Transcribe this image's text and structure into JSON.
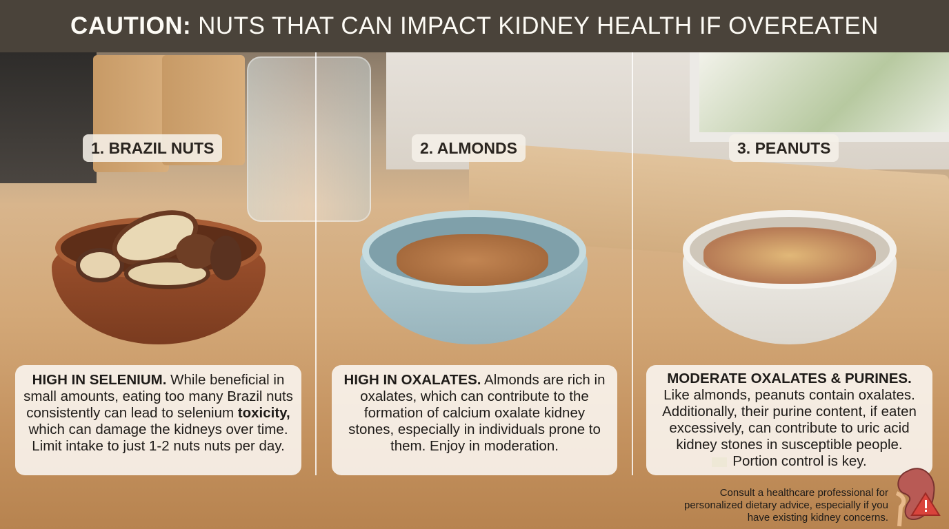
{
  "header": {
    "title_bold": "CAUTION:",
    "title_rest": "NUTS THAT CAN IMPACT KIDNEY HEALTH IF OVEREATEN"
  },
  "panels": [
    {
      "label": "1. BRAZIL NUTS",
      "heading": "HIGH IN SELENIUM.",
      "body_before": " While beneficial in small amounts, eating too many Brazil nuts consistently can lead to selenium ",
      "body_bold": "toxicity,",
      "body_after": " which can damage the kidneys over time. Limit intake to just 1-2 nuts nuts per day."
    },
    {
      "label": "2. ALMONDS",
      "heading": "HIGH IN OXALATES.",
      "body": " Almonds are rich in oxalates, which can contribute to the formation of calcium oxalate kidney stones, especially in individuals prone to them. Enjoy in moderation."
    },
    {
      "label": "3. PEANUTS",
      "heading": "MODERATE OXALATES & PURINES.",
      "body": "Like almonds, peanuts contain oxalates. Additionally, their purine content, if eaten excessively, can contribute to uric acid kidney stones in susceptible people.",
      "tip": "Portion control is key."
    }
  ],
  "footer": {
    "consult": "Consult a healthcare professional for personalized dietary advice, especially if you have existing kidney concerns."
  },
  "icons": {
    "kidney": "kidney-warning-icon",
    "tip": "note-icon"
  },
  "colors": {
    "header": "#4a433a",
    "warning": "#d9443c",
    "kidney": "#b85a55"
  }
}
